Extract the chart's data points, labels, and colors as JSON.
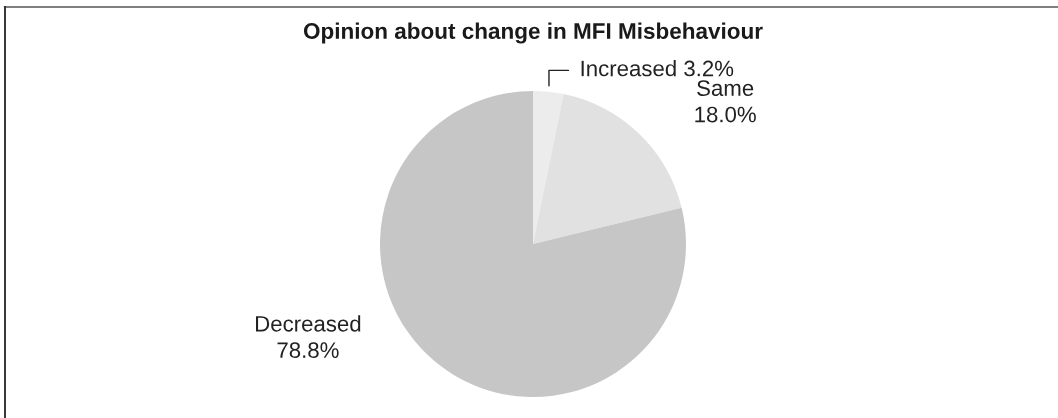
{
  "chart_data": {
    "type": "pie",
    "title": "Opinion about change in MFI Misbehaviour",
    "categories": [
      "Increased",
      "Same",
      "Decreased"
    ],
    "values": [
      3.2,
      18.0,
      78.8
    ],
    "value_labels": [
      "3.2%",
      "18.0%",
      "78.8%"
    ],
    "colors": [
      "#ececec",
      "#e1e1e1",
      "#c6c6c6"
    ]
  }
}
